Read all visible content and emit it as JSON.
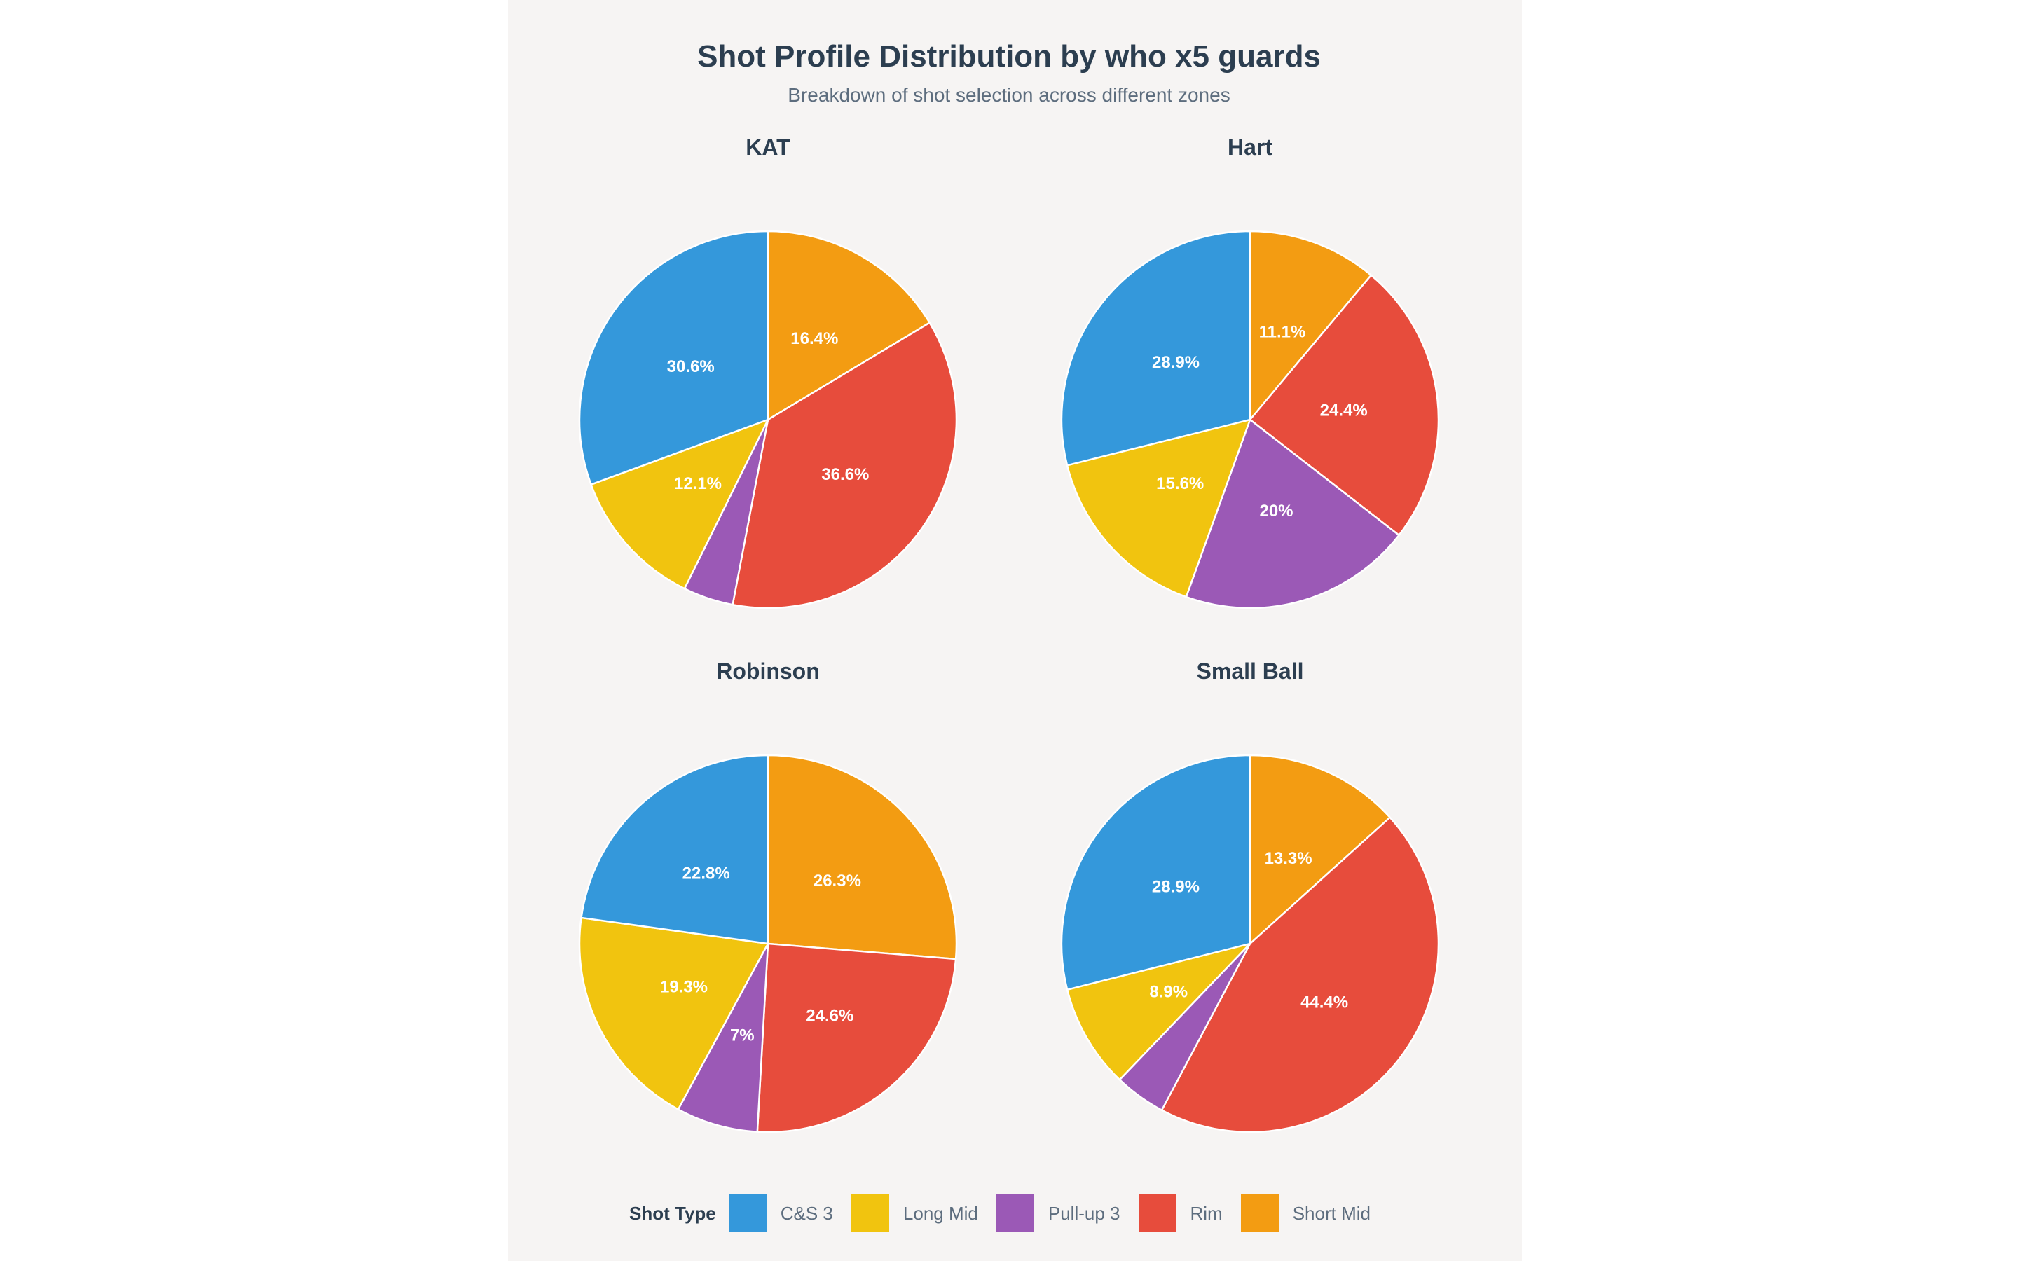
{
  "chart_data": {
    "type": "pie",
    "title": "Shot Profile Distribution by who x5 guards",
    "subtitle": "Breakdown of shot selection across different zones",
    "legend": {
      "title": "Shot Type",
      "placement": "bottom",
      "entries": [
        {
          "name": "C&S 3",
          "color": "#3498db"
        },
        {
          "name": "Long Mid",
          "color": "#f1c40f"
        },
        {
          "name": "Pull-up 3",
          "color": "#9b59b6"
        },
        {
          "name": "Rim",
          "color": "#e74c3c"
        },
        {
          "name": "Short Mid",
          "color": "#f39c12"
        }
      ]
    },
    "categories": [
      "Short Mid",
      "Rim",
      "Pull-up 3",
      "Long Mid",
      "C&S 3"
    ],
    "colors": [
      "#f39c12",
      "#e74c3c",
      "#9b59b6",
      "#f1c40f",
      "#3498db"
    ],
    "pies": [
      {
        "name": "KAT",
        "values": [
          16.4,
          36.6,
          4.3,
          12.1,
          30.6
        ],
        "labels": [
          "16.4%",
          "36.6%",
          "",
          "12.1%",
          "30.6%"
        ]
      },
      {
        "name": "Hart",
        "values": [
          11.1,
          24.4,
          20,
          15.6,
          28.9
        ],
        "labels": [
          "11.1%",
          "24.4%",
          "20%",
          "15.6%",
          "28.9%"
        ]
      },
      {
        "name": "Robinson",
        "values": [
          26.3,
          24.6,
          7,
          19.3,
          22.8
        ],
        "labels": [
          "26.3%",
          "24.6%",
          "7%",
          "19.3%",
          "22.8%"
        ]
      },
      {
        "name": "Small Ball",
        "values": [
          13.3,
          44.4,
          4.4,
          8.9,
          28.9
        ],
        "labels": [
          "13.3%",
          "44.4%",
          "",
          "8.9%",
          "28.9%"
        ]
      }
    ]
  }
}
